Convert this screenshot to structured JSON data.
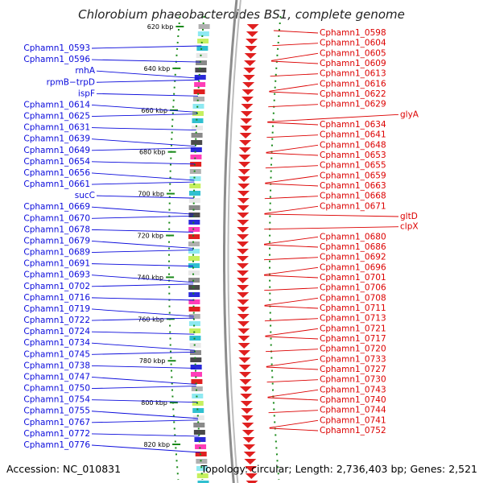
{
  "title": "Chlorobium phaeobacteroides BS1, complete genome",
  "footer": {
    "accession": "Accession: NC_010831",
    "info": "Topology: circular; Length: 2,736,403 bp; Genes: 2,521"
  },
  "colors": {
    "left_label": "#0a0adc",
    "right_label": "#dc0000",
    "backbone": "#8c8c8c",
    "tick": "#1a8a1a"
  },
  "ticks": [
    "620 kbp",
    "640 kbp",
    "660 kbp",
    "680 kbp",
    "700 kbp",
    "720 kbp",
    "740 kbp",
    "760 kbp",
    "780 kbp",
    "800 kbp",
    "820 kbp"
  ],
  "left_labels": [
    "Cphamn1_0593",
    "Cphamn1_0596",
    "rnhA",
    "rpmB−trpD",
    "ispF",
    "Cphamn1_0614",
    "Cphamn1_0625",
    "Cphamn1_0631",
    "Cphamn1_0639",
    "Cphamn1_0649",
    "Cphamn1_0654",
    "Cphamn1_0656",
    "Cphamn1_0661",
    "sucC",
    "Cphamn1_0669",
    "Cphamn1_0670",
    "Cphamn1_0678",
    "Cphamn1_0679",
    "Cphamn1_0689",
    "Cphamn1_0691",
    "Cphamn1_0693",
    "Cphamn1_0702",
    "Cphamn1_0716",
    "Cphamn1_0719",
    "Cphamn1_0722",
    "Cphamn1_0724",
    "Cphamn1_0734",
    "Cphamn1_0745",
    "Cphamn1_0738",
    "Cphamn1_0747",
    "Cphamn1_0750",
    "Cphamn1_0754",
    "Cphamn1_0755",
    "Cphamn1_0767",
    "Cphamn1_0772",
    "Cphamn1_0776"
  ],
  "right_labels": [
    "Cphamn1_0598",
    "Cphamn1_0604",
    "Cphamn1_0605",
    "Cphamn1_0609",
    "Cphamn1_0613",
    "Cphamn1_0616",
    "Cphamn1_0622",
    "Cphamn1_0629",
    "glyA",
    "Cphamn1_0634",
    "Cphamn1_0641",
    "Cphamn1_0648",
    "Cphamn1_0653",
    "Cphamn1_0655",
    "Cphamn1_0659",
    "Cphamn1_0663",
    "Cphamn1_0668",
    "Cphamn1_0671",
    "gltD",
    "clpX",
    "Cphamn1_0680",
    "Cphamn1_0686",
    "Cphamn1_0692",
    "Cphamn1_0696",
    "Cphamn1_0701",
    "Cphamn1_0706",
    "Cphamn1_0708",
    "Cphamn1_0711",
    "Cphamn1_0713",
    "Cphamn1_0721",
    "Cphamn1_0717",
    "Cphamn1_0720",
    "Cphamn1_0733",
    "Cphamn1_0727",
    "Cphamn1_0730",
    "Cphamn1_0743",
    "Cphamn1_0740",
    "Cphamn1_0744",
    "Cphamn1_0741",
    "Cphamn1_0752"
  ],
  "feature_colors": [
    "#2a2ad8",
    "#e8e8e8",
    "#8ee9f2",
    "#ff3db8",
    "#8a8a8a",
    "#c6f060",
    "#e02020",
    "#4a4a4a",
    "#30c0d0",
    "#b0b0b0"
  ]
}
